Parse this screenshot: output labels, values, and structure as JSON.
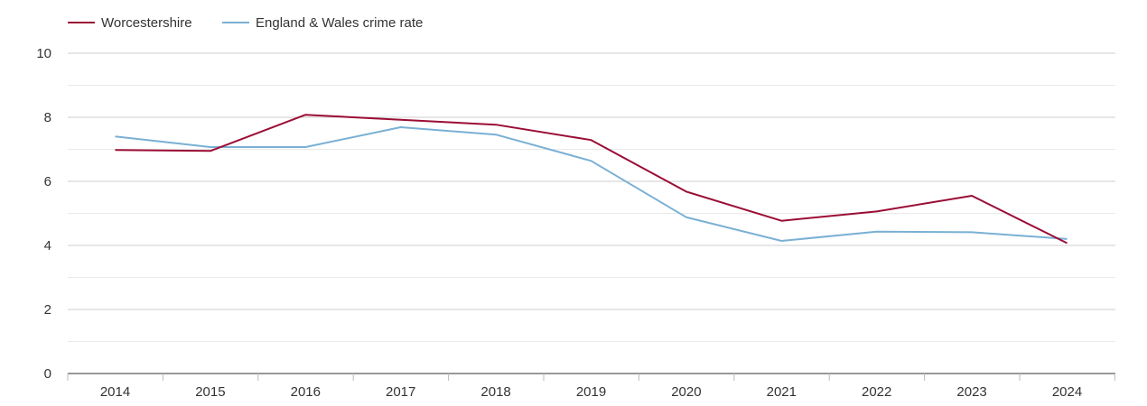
{
  "chart_data": {
    "type": "line",
    "title": "",
    "xlabel": "",
    "ylabel": "",
    "categories": [
      "2014",
      "2015",
      "2016",
      "2017",
      "2018",
      "2019",
      "2020",
      "2021",
      "2022",
      "2023",
      "2024"
    ],
    "ylim": [
      0,
      10
    ],
    "yticks": [
      "0",
      "2",
      "4",
      "6",
      "8",
      "10"
    ],
    "grid": true,
    "legend_position": "top-left",
    "series": [
      {
        "name": "Worcestershire",
        "color": "#9b0d35",
        "values": [
          6.98,
          6.95,
          8.08,
          7.92,
          7.77,
          7.29,
          5.68,
          4.77,
          5.06,
          5.55,
          4.07
        ]
      },
      {
        "name": "England & Wales crime rate",
        "color": "#79b0d4",
        "values": [
          7.4,
          7.07,
          7.07,
          7.69,
          7.46,
          6.64,
          4.88,
          4.14,
          4.43,
          4.41,
          4.2
        ]
      }
    ]
  }
}
